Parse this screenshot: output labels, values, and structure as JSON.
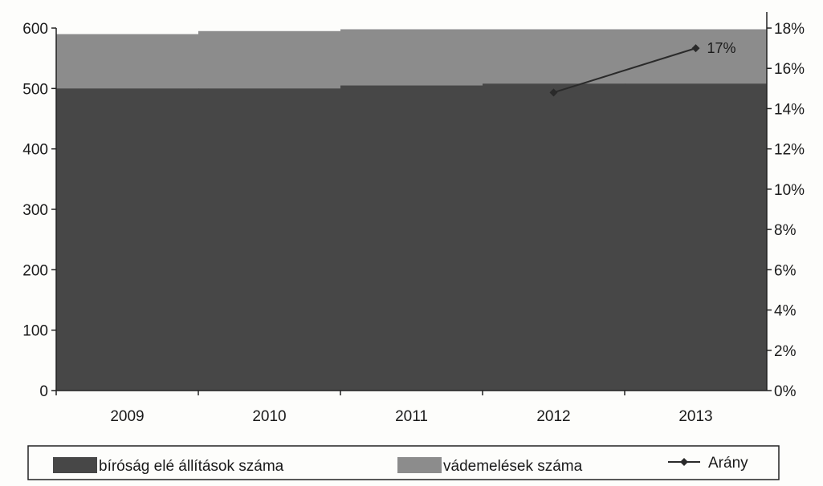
{
  "chart_data": {
    "type": "bar",
    "categories": [
      "2009",
      "2010",
      "2011",
      "2012",
      "2013"
    ],
    "series": [
      {
        "name": "bíróság elé állítások száma",
        "kind": "bar",
        "axis": "left",
        "color": "#474747",
        "values": [
          500,
          500,
          505,
          508,
          508
        ]
      },
      {
        "name": "vádemelések száma",
        "kind": "bar",
        "axis": "left",
        "color": "#8c8c8c",
        "values": [
          590,
          595,
          598,
          598,
          598
        ]
      },
      {
        "name": "Arány",
        "kind": "line",
        "axis": "right",
        "color": "#2a2a2a",
        "values": [
          null,
          null,
          null,
          14.8,
          17
        ]
      }
    ],
    "data_labels": [
      {
        "series": "Arány",
        "category": "2013",
        "text": "17%"
      }
    ],
    "y_left": {
      "ticks": [
        0,
        100,
        200,
        300,
        400,
        500,
        600
      ],
      "range": [
        0,
        600
      ]
    },
    "y_right": {
      "ticks": [
        "0%",
        "2%",
        "4%",
        "6%",
        "8%",
        "10%",
        "12%",
        "14%",
        "16%",
        "18%"
      ],
      "range": [
        0,
        18
      ]
    },
    "legend": {
      "position": "bottom",
      "items": [
        "bíróság elé állítások száma",
        "vádemelések száma",
        "Arány"
      ]
    },
    "grid": false
  }
}
